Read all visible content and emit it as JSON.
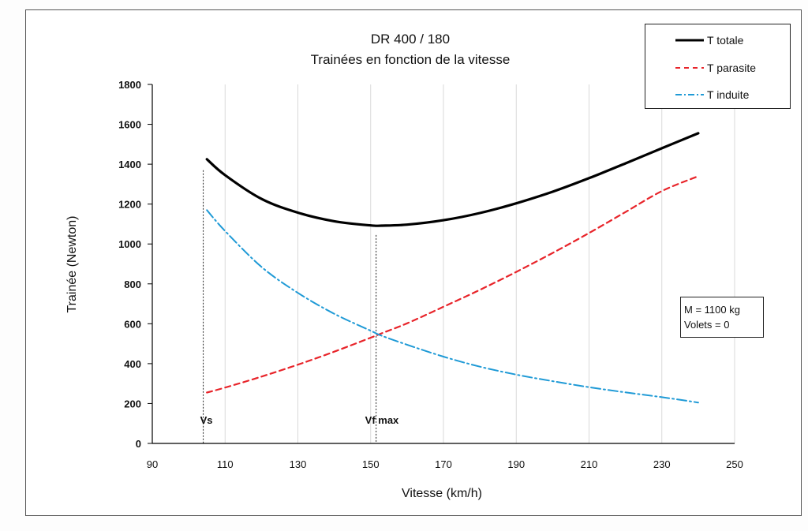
{
  "chart_data": {
    "type": "line",
    "title": "DR 400 / 180",
    "subtitle": "Trainées en fonction de la vitesse",
    "xlabel": "Vitesse (km/h)",
    "ylabel": "Trainée (Newton)",
    "xlim": [
      90,
      250
    ],
    "ylim": [
      0,
      1800
    ],
    "x_ticks": [
      "90",
      "110",
      "130",
      "150",
      "170",
      "190",
      "210",
      "230",
      "250"
    ],
    "y_ticks": [
      "0",
      "200",
      "400",
      "600",
      "800",
      "1000",
      "1200",
      "1400",
      "1600",
      "1800"
    ],
    "x_tick_values": [
      90,
      110,
      130,
      150,
      170,
      190,
      210,
      230,
      250
    ],
    "y_tick_values": [
      0,
      200,
      400,
      600,
      800,
      1000,
      1200,
      1400,
      1600,
      1800
    ],
    "grid": "vertical",
    "legend_position": "top-right",
    "x": [
      105,
      110,
      120,
      130,
      140,
      150,
      153,
      160,
      170,
      180,
      190,
      200,
      210,
      220,
      230,
      240
    ],
    "series": [
      {
        "name": "T totale",
        "color": "#000000",
        "style": "solid",
        "values": [
          1425,
          1345,
          1226,
          1157,
          1114,
          1093,
          1092,
          1097,
          1119,
          1155,
          1204,
          1262,
          1330,
          1404,
          1480,
          1555
        ]
      },
      {
        "name": "T parasite",
        "color": "#e8242a",
        "style": "dashed",
        "values": [
          255,
          280,
          335,
          395,
          460,
          530,
          552,
          602,
          685,
          770,
          860,
          955,
          1055,
          1160,
          1265,
          1340
        ]
      },
      {
        "name": "T induite",
        "color": "#1f9ad6",
        "style": "dashdot",
        "values": [
          1170,
          1065,
          885,
          755,
          650,
          565,
          540,
          495,
          435,
          385,
          345,
          312,
          282,
          256,
          232,
          205
        ]
      }
    ],
    "annotations": [
      {
        "text": "Vs",
        "x": 104
      },
      {
        "text": "Vf max",
        "x": 151.5
      }
    ],
    "info_box": [
      "M = 1100  kg",
      "Volets = 0"
    ]
  }
}
